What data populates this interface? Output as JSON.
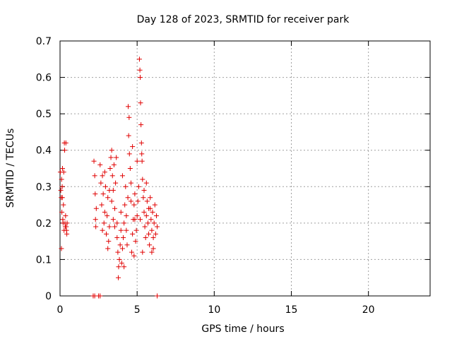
{
  "chart_data": {
    "type": "scatter",
    "title": "Day 128 of 2023, SRMTID for receiver park",
    "xlabel": "GPS time / hours",
    "ylabel": "SRMTID / TECUs",
    "xlim": [
      0,
      24
    ],
    "ylim": [
      0,
      0.7
    ],
    "xticks": [
      0,
      5,
      10,
      15,
      20
    ],
    "xtick_labels": [
      "0",
      "5",
      "10",
      "15",
      "20"
    ],
    "yticks": [
      0,
      0.1,
      0.2,
      0.3,
      0.4,
      0.5,
      0.6,
      0.7
    ],
    "ytick_labels": [
      "0",
      "0.1",
      "0.2",
      "0.3",
      "0.4",
      "0.5",
      "0.6",
      "0.7"
    ],
    "grid": true,
    "marker": "+",
    "color": "#e00000",
    "series": [
      {
        "name": "SRMTID",
        "points": [
          [
            0.02,
            0.34
          ],
          [
            0.05,
            0.29
          ],
          [
            0.08,
            0.27
          ],
          [
            0.1,
            0.32
          ],
          [
            0.12,
            0.23
          ],
          [
            0.14,
            0.3
          ],
          [
            0.16,
            0.35
          ],
          [
            0.18,
            0.21
          ],
          [
            0.2,
            0.2
          ],
          [
            0.22,
            0.25
          ],
          [
            0.24,
            0.34
          ],
          [
            0.26,
            0.18
          ],
          [
            0.28,
            0.42
          ],
          [
            0.3,
            0.4
          ],
          [
            0.32,
            0.2
          ],
          [
            0.34,
            0.19
          ],
          [
            0.36,
            0.22
          ],
          [
            0.38,
            0.42
          ],
          [
            0.4,
            0.19
          ],
          [
            0.42,
            0.18
          ],
          [
            0.44,
            0.17
          ],
          [
            0.46,
            0.2
          ],
          [
            0.09,
            0.13
          ],
          [
            0.15,
            0.27
          ],
          [
            2.2,
            0.37
          ],
          [
            2.25,
            0.33
          ],
          [
            2.28,
            0.28
          ],
          [
            2.3,
            0.21
          ],
          [
            2.32,
            0.19
          ],
          [
            2.35,
            0.24
          ],
          [
            2.6,
            0.36
          ],
          [
            2.65,
            0.31
          ],
          [
            2.7,
            0.25
          ],
          [
            2.75,
            0.33
          ],
          [
            2.8,
            0.28
          ],
          [
            2.85,
            0.2
          ],
          [
            2.9,
            0.23
          ],
          [
            2.95,
            0.3
          ],
          [
            3.0,
            0.17
          ],
          [
            3.05,
            0.22
          ],
          [
            3.1,
            0.27
          ],
          [
            3.15,
            0.15
          ],
          [
            3.2,
            0.19
          ],
          [
            3.25,
            0.35
          ],
          [
            3.3,
            0.38
          ],
          [
            3.35,
            0.4
          ],
          [
            3.4,
            0.33
          ],
          [
            3.45,
            0.29
          ],
          [
            3.5,
            0.36
          ],
          [
            3.55,
            0.24
          ],
          [
            3.6,
            0.31
          ],
          [
            3.65,
            0.38
          ],
          [
            3.7,
            0.2
          ],
          [
            3.75,
            0.12
          ],
          [
            3.78,
            0.05
          ],
          [
            3.8,
            0.08
          ],
          [
            3.85,
            0.1
          ],
          [
            3.9,
            0.14
          ],
          [
            3.95,
            0.18
          ],
          [
            4.0,
            0.09
          ],
          [
            4.05,
            0.13
          ],
          [
            4.1,
            0.16
          ],
          [
            4.15,
            0.2
          ],
          [
            4.2,
            0.25
          ],
          [
            4.25,
            0.3
          ],
          [
            4.3,
            0.22
          ],
          [
            4.35,
            0.14
          ],
          [
            4.4,
            0.27
          ],
          [
            4.42,
            0.52
          ],
          [
            4.45,
            0.44
          ],
          [
            4.48,
            0.49
          ],
          [
            4.5,
            0.39
          ],
          [
            4.55,
            0.35
          ],
          [
            4.6,
            0.31
          ],
          [
            4.65,
            0.12
          ],
          [
            4.7,
            0.17
          ],
          [
            4.75,
            0.21
          ],
          [
            4.8,
            0.25
          ],
          [
            4.85,
            0.28
          ],
          [
            4.9,
            0.15
          ],
          [
            4.95,
            0.18
          ],
          [
            5.0,
            0.22
          ],
          [
            5.05,
            0.26
          ],
          [
            5.1,
            0.3
          ],
          [
            5.15,
            0.65
          ],
          [
            5.18,
            0.62
          ],
          [
            5.2,
            0.6
          ],
          [
            5.22,
            0.53
          ],
          [
            5.25,
            0.47
          ],
          [
            5.28,
            0.42
          ],
          [
            5.3,
            0.39
          ],
          [
            5.32,
            0.37
          ],
          [
            5.35,
            0.32
          ],
          [
            5.4,
            0.27
          ],
          [
            5.45,
            0.23
          ],
          [
            5.5,
            0.19
          ],
          [
            5.55,
            0.16
          ],
          [
            5.6,
            0.22
          ],
          [
            5.65,
            0.26
          ],
          [
            5.7,
            0.2
          ],
          [
            5.75,
            0.17
          ],
          [
            5.8,
            0.14
          ],
          [
            5.85,
            0.24
          ],
          [
            5.9,
            0.21
          ],
          [
            5.95,
            0.18
          ],
          [
            6.0,
            0.23
          ],
          [
            6.05,
            0.13
          ],
          [
            6.1,
            0.2
          ],
          [
            6.15,
            0.25
          ],
          [
            6.2,
            0.17
          ],
          [
            6.25,
            0.22
          ],
          [
            6.3,
            0.19
          ],
          [
            2.9,
            0.34
          ],
          [
            3.1,
            0.13
          ],
          [
            3.35,
            0.26
          ],
          [
            3.55,
            0.19
          ],
          [
            3.95,
            0.23
          ],
          [
            4.15,
            0.08
          ],
          [
            4.6,
            0.26
          ],
          [
            4.8,
            0.11
          ],
          [
            5.0,
            0.37
          ],
          [
            5.45,
            0.29
          ],
          [
            5.75,
            0.24
          ],
          [
            6.05,
            0.16
          ],
          [
            3.2,
            0.29
          ],
          [
            3.7,
            0.16
          ],
          [
            4.3,
            0.18
          ],
          [
            5.2,
            0.21
          ],
          [
            5.6,
            0.31
          ],
          [
            5.95,
            0.12
          ],
          [
            2.75,
            0.18
          ],
          [
            4.05,
            0.33
          ],
          [
            4.7,
            0.41
          ],
          [
            3.45,
            0.21
          ],
          [
            4.85,
            0.21
          ],
          [
            5.35,
            0.12
          ],
          [
            5.85,
            0.27
          ],
          [
            2.15,
            0.0
          ],
          [
            2.25,
            0.0
          ],
          [
            2.5,
            0.0
          ],
          [
            2.6,
            0.0
          ],
          [
            6.3,
            0.0
          ]
        ]
      }
    ]
  }
}
